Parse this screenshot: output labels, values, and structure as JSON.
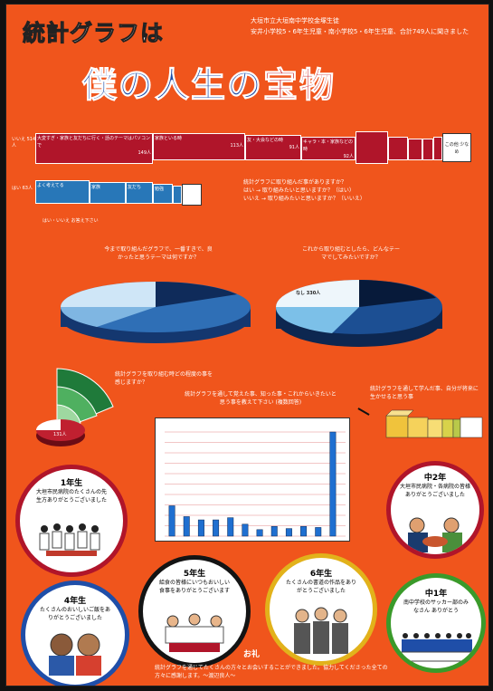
{
  "title": "統計グラフは",
  "subtitle_lines": [
    "大垣市立大垣南中学校金塚生徒",
    "安井小学校5・6年生児童・南小学校5・6年生児童、合計749人に聞きました"
  ],
  "main_title": {
    "part1": "僕の人生の",
    "part2": "宝物"
  },
  "top_bar": {
    "side_label": "いいえ 514人",
    "segments": [
      {
        "text": "大変すぎ・家族と友だちに行く・話のテーマはパソコンで",
        "count": "149人"
      },
      {
        "text": "家族といる時",
        "count": "113人"
      },
      {
        "text": "友・大会などの時",
        "count": "91人"
      },
      {
        "text": "キャラ・本・家族などの時",
        "count": "92人"
      }
    ],
    "end_label": "この他 少なめ"
  },
  "second_bar": {
    "side_label": "はい 63人",
    "segments": [
      {
        "text": "よく考えてる"
      },
      {
        "text": "家族"
      },
      {
        "text": "友だち"
      },
      {
        "text": "勉強"
      }
    ],
    "note": "はい・いいえ お答え下さい"
  },
  "question_notes": [
    "統計グラフに取り組んだ事がありますか？",
    "はい → 取り組みたいと思いますか？（はい）",
    "いいえ → 取り組みたいと思いますか？（いいえ）"
  ],
  "pie_left": {
    "caption": "今まで取り組んだグラフで、一番すきで、良かったと思うテーマは何ですか？"
  },
  "pie_right": {
    "caption": "これから取り組むとしたら、どんなテーマでしてみたいですか？",
    "big_label": "なし 330人"
  },
  "fan_note": "統計グラフを取り組む時どの程度の事を感じますか？",
  "small_pie_label": "131人",
  "chart": {
    "question": "統計グラフを通して覚えた事、知った事・これからいきたいと思う事を教えて下さい",
    "unit": "(複数回答)"
  },
  "box_note": "統計グラフを通して学んだ事、自分が将来に生かせると思う事",
  "circles": [
    {
      "title": "1年生",
      "message": "大垣市民病院のたくさんの先生方ありがとうございました"
    },
    {
      "title": "中2年",
      "message": "大垣市民病院・各病院の皆様ありがとうございました"
    },
    {
      "title": "4年生",
      "message": "たくさんのおいしいご飯をありがとうございました"
    },
    {
      "title": "5年生",
      "message": "給食の皆様にいつもおいしい食事をありがとうございます"
    },
    {
      "title": "6年生",
      "message": "たくさんの書道の作品をありがとうございました"
    },
    {
      "title": "中1年",
      "message": "南中学校のサッカー部のみなさん ありがとう"
    }
  ],
  "footer": "統計グラフを通じてたくさんの方々とお会いすることができました。協力してくださった全ての方々に感謝します。〜渡辺良人〜",
  "footer_mark": "お礼",
  "chart_data": {
    "type": "bar",
    "values": [
      28,
      18,
      15,
      15,
      17,
      11,
      6,
      9,
      7,
      9,
      8,
      96
    ]
  },
  "colors": {
    "background": "#f0551c",
    "accent_blue": "#1f4ea8",
    "accent_red": "#c81e24",
    "bar_red": "#b0152a",
    "bar_blue": "#2877b8"
  }
}
